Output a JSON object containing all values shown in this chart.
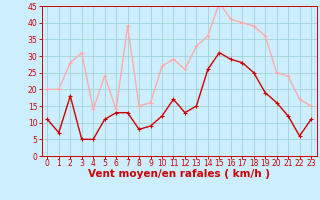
{
  "x": [
    0,
    1,
    2,
    3,
    4,
    5,
    6,
    7,
    8,
    9,
    10,
    11,
    12,
    13,
    14,
    15,
    16,
    17,
    18,
    19,
    20,
    21,
    22,
    23
  ],
  "vent_moyen": [
    11,
    7,
    18,
    5,
    5,
    11,
    13,
    13,
    8,
    9,
    12,
    17,
    13,
    15,
    26,
    31,
    29,
    28,
    25,
    19,
    16,
    12,
    6,
    11
  ],
  "en_rafales": [
    20,
    20,
    28,
    31,
    14,
    24,
    14,
    39,
    15,
    16,
    27,
    29,
    26,
    33,
    36,
    46,
    41,
    40,
    39,
    36,
    25,
    24,
    17,
    15
  ],
  "color_moyen": "#cc0000",
  "color_rafales": "#ffaaaa",
  "bg_color": "#cceeff",
  "grid_color": "#99cccc",
  "xlabel": "Vent moyen/en rafales ( km/h )",
  "xlabel_color": "#cc0000",
  "ylim": [
    0,
    45
  ],
  "xlim": [
    -0.5,
    23.5
  ],
  "yticks": [
    0,
    5,
    10,
    15,
    20,
    25,
    30,
    35,
    40,
    45
  ],
  "xticks": [
    0,
    1,
    2,
    3,
    4,
    5,
    6,
    7,
    8,
    9,
    10,
    11,
    12,
    13,
    14,
    15,
    16,
    17,
    18,
    19,
    20,
    21,
    22,
    23
  ],
  "tick_color": "#cc0000",
  "tick_fontsize": 5.5,
  "xlabel_fontsize": 7.5,
  "marker_size": 2.5,
  "line_width": 1.0
}
